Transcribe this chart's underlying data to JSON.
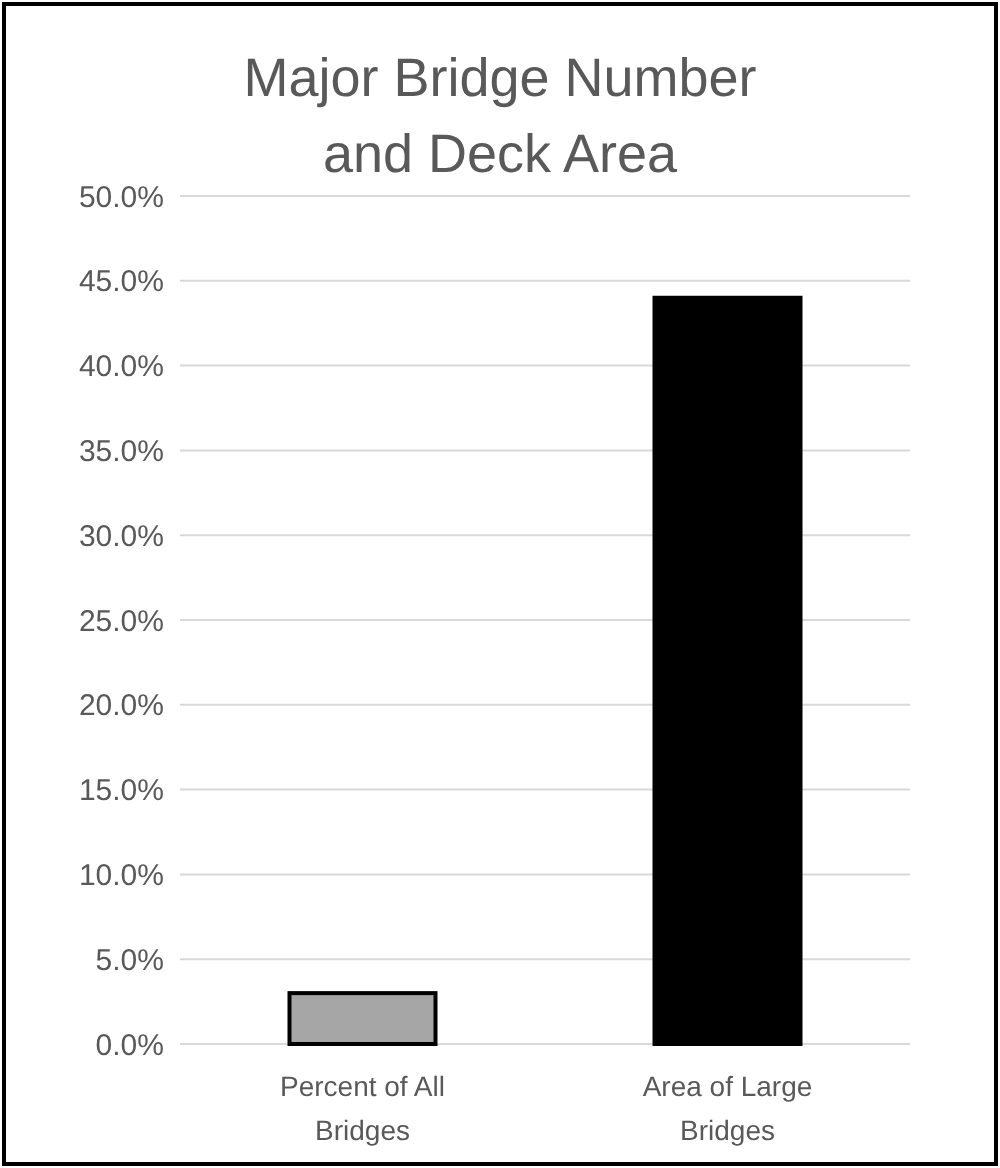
{
  "chart_data": {
    "type": "bar",
    "title": "Major Bridge Number and Deck Area",
    "categories": [
      "Percent of All Bridges",
      "Area of Large Bridges"
    ],
    "values": [
      3.0,
      44.0
    ],
    "colors": [
      "#a6a6a6",
      "#000000"
    ],
    "ylim": [
      0,
      50
    ],
    "yticks": [
      {
        "value": 0,
        "label": "0.0%"
      },
      {
        "value": 5,
        "label": "5.0%"
      },
      {
        "value": 10,
        "label": "10.0%"
      },
      {
        "value": 15,
        "label": "15.0%"
      },
      {
        "value": 20,
        "label": "20.0%"
      },
      {
        "value": 25,
        "label": "25.0%"
      },
      {
        "value": 30,
        "label": "30.0%"
      },
      {
        "value": 35,
        "label": "35.0%"
      },
      {
        "value": 40,
        "label": "40.0%"
      },
      {
        "value": 45,
        "label": "45.0%"
      },
      {
        "value": 50,
        "label": "50.0%"
      }
    ],
    "grid": "y"
  }
}
